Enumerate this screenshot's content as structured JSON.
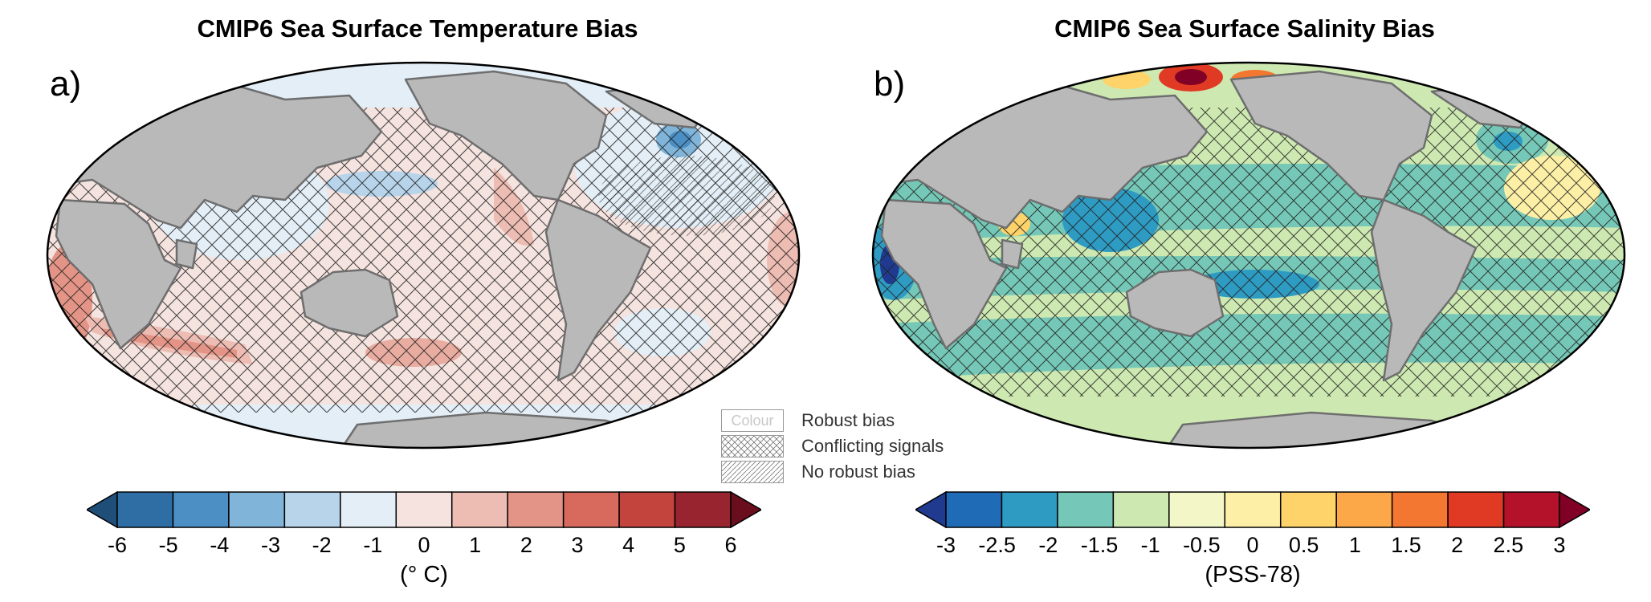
{
  "panels": [
    {
      "id": "a",
      "label": "a)",
      "title": "CMIP6 Sea Surface Temperature Bias",
      "unit": "(° C)",
      "ticks": [
        "-6",
        "-5",
        "-4",
        "-3",
        "-2",
        "-1",
        "0",
        "1",
        "2",
        "3",
        "4",
        "5",
        "6"
      ],
      "colors": [
        "#1f4e79",
        "#2e6ea5",
        "#4b8fc4",
        "#80b4d8",
        "#b7d4ea",
        "#e3eef7",
        "#f6e3df",
        "#edbcb2",
        "#e49486",
        "#d76a5c",
        "#c2443d",
        "#982430",
        "#6a0d1c"
      ]
    },
    {
      "id": "b",
      "label": "b)",
      "title": "CMIP6 Sea Surface Salinity Bias",
      "unit": "(PSS-78)",
      "ticks": [
        "-3",
        "-2.5",
        "-2",
        "-1.5",
        "-1",
        "-0.5",
        "0",
        "0.5",
        "1",
        "1.5",
        "2",
        "2.5",
        "3"
      ],
      "colors": [
        "#1f3a8f",
        "#1f6bb5",
        "#2e9bc3",
        "#75c8b7",
        "#cde9b1",
        "#f3f7c8",
        "#fdf0a6",
        "#fdd36a",
        "#fca848",
        "#f47731",
        "#e03a24",
        "#b3122a",
        "#800026"
      ]
    }
  ],
  "legend": {
    "colour_swatch": "Colour",
    "items": [
      "Robust bias",
      "Conflicting signals",
      "No robust bias"
    ]
  },
  "colors": {
    "land": "#b9b9b9",
    "coast": "#6e6e6e",
    "hatch": "#222222"
  }
}
